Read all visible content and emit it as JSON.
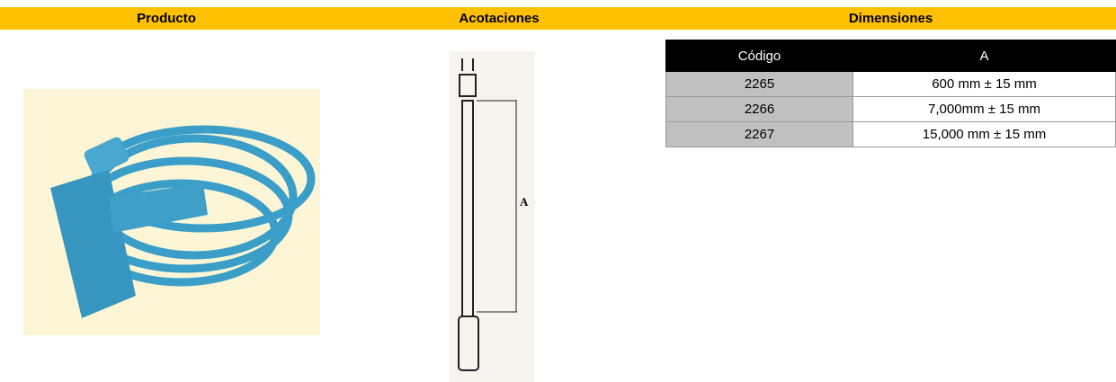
{
  "header": {
    "columns": [
      "Producto",
      "Acotaciones",
      "Dimensiones"
    ]
  },
  "drawing": {
    "dimension_label": "A"
  },
  "table": {
    "header": [
      "Código",
      "A"
    ],
    "rows": [
      [
        2265,
        "600 mm ± 15 mm"
      ],
      [
        2266,
        "7,000mm ± 15 mm"
      ],
      [
        2267,
        "15,000 mm ± 15 mm"
      ]
    ]
  }
}
